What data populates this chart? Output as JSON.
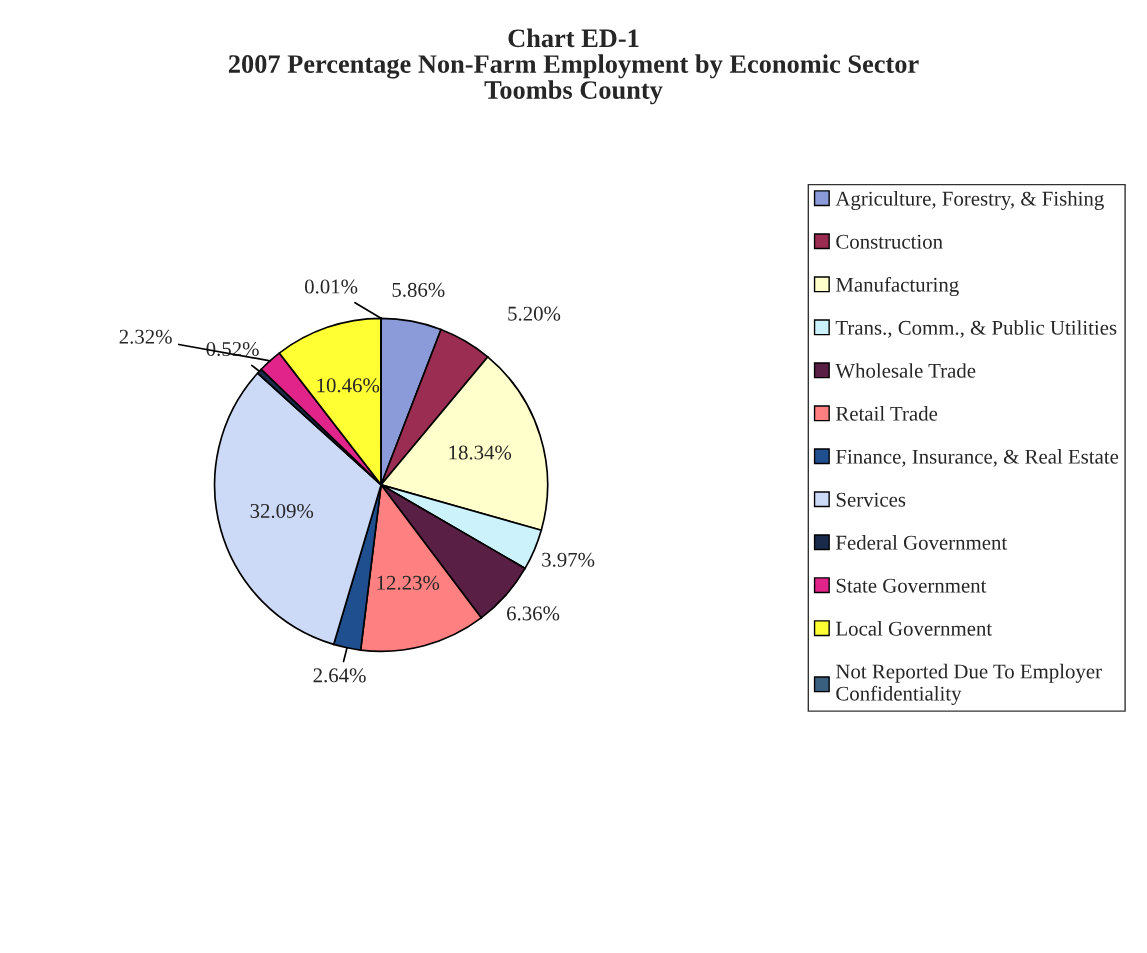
{
  "chart_data": {
    "type": "pie",
    "title": "Chart ED-1\n2007 Percentage Non-Farm Employment by Economic Sector\nToombs County",
    "categories": [
      "Agriculture, Forestry, & Fishing",
      "Construction",
      "Manufacturing",
      "Trans., Comm., & Public Utilities",
      "Wholesale Trade",
      "Retail Trade",
      "Finance, Insurance, & Real Estate",
      "Services",
      "Federal Government",
      "State Government",
      "Local Government",
      "Not Reported Due To Employer\nConfidentiality"
    ],
    "values": [
      5.86,
      5.2,
      18.34,
      3.97,
      6.36,
      12.23,
      2.64,
      32.09,
      0.52,
      2.32,
      10.46,
      0.01
    ],
    "value_labels": [
      "5.86%",
      "5.20%",
      "18.34%",
      "3.97%",
      "6.36%",
      "12.23%",
      "2.64%",
      "32.09%",
      "0.52%",
      "2.32%",
      "10.46%",
      "0.01%"
    ],
    "colors": [
      "#8b9ad8",
      "#9b2d53",
      "#ffffcc",
      "#ccf3fb",
      "#5a1f45",
      "#ff8080",
      "#1f4f8f",
      "#ccd9f7",
      "#1a2a4a",
      "#e0248a",
      "#ffff33",
      "#3a6080"
    ],
    "legend": "right"
  }
}
